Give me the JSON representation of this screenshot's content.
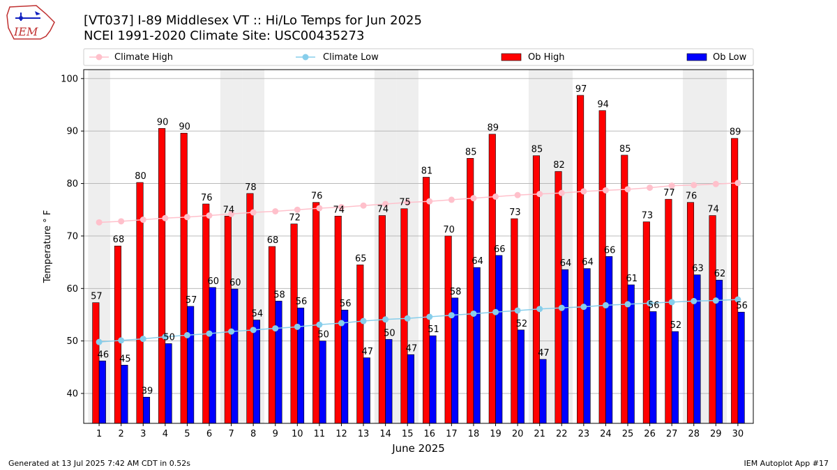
{
  "header": {
    "title_line1": "[VT037] I-89 Middlesex  VT :: Hi/Lo Temps for Jun 2025",
    "title_line2": "NCEI 1991-2020 Climate Site: USC00435273",
    "logo_text": "IEM"
  },
  "footer": {
    "left": "Generated at 13 Jul 2025 7:42 AM CDT in 0.52s",
    "right": "IEM Autoplot App #17"
  },
  "chart_data": {
    "type": "bar",
    "xlabel": "June 2025",
    "ylabel": "Temperature ° F",
    "ylim": [
      34.3,
      101.7
    ],
    "yticks": [
      40,
      50,
      60,
      70,
      80,
      90,
      100
    ],
    "grid": true,
    "legend": "top, horizontal above plot",
    "categories": [
      "1",
      "2",
      "3",
      "4",
      "5",
      "6",
      "7",
      "8",
      "9",
      "10",
      "11",
      "12",
      "13",
      "14",
      "15",
      "16",
      "17",
      "18",
      "19",
      "20",
      "21",
      "22",
      "23",
      "24",
      "25",
      "26",
      "27",
      "28",
      "29",
      "30"
    ],
    "weekend_days": [
      1,
      7,
      8,
      14,
      15,
      21,
      22,
      28,
      29
    ],
    "series": [
      {
        "name": "Climate High",
        "kind": "line",
        "color": "#ffc0cb",
        "values": [
          72.6,
          72.8,
          73.1,
          73.4,
          73.6,
          73.9,
          74.2,
          74.5,
          74.7,
          75.0,
          75.3,
          75.5,
          75.8,
          76.1,
          76.4,
          76.6,
          76.9,
          77.2,
          77.5,
          77.8,
          78.0,
          78.2,
          78.5,
          78.7,
          78.9,
          79.2,
          79.6,
          79.7,
          79.9,
          80.1
        ]
      },
      {
        "name": "Climate Low",
        "kind": "line",
        "color": "#87ceeb",
        "values": [
          49.8,
          50.1,
          50.4,
          50.8,
          51.1,
          51.4,
          51.8,
          52.1,
          52.4,
          52.7,
          53.1,
          53.4,
          53.8,
          54.1,
          54.3,
          54.6,
          54.9,
          55.2,
          55.5,
          55.8,
          56.1,
          56.3,
          56.5,
          56.8,
          57.0,
          57.2,
          57.4,
          57.6,
          57.7,
          57.9
        ]
      },
      {
        "name": "Ob High",
        "kind": "bar",
        "color": "#ff0000",
        "values": [
          57,
          68,
          80,
          90,
          90,
          76,
          74,
          78,
          68,
          72,
          76,
          74,
          65,
          74,
          75,
          81,
          70,
          85,
          89,
          73,
          85,
          82,
          97,
          94,
          85,
          73,
          77,
          76,
          74,
          89
        ],
        "plot_values": [
          57.3,
          68.1,
          80.2,
          90.5,
          89.6,
          76.1,
          73.8,
          78.1,
          68.0,
          72.3,
          76.4,
          73.8,
          64.5,
          73.9,
          75.2,
          81.2,
          70.0,
          84.8,
          89.4,
          73.3,
          85.3,
          82.3,
          96.8,
          93.9,
          85.4,
          72.7,
          77.0,
          76.4,
          73.9,
          88.6
        ]
      },
      {
        "name": "Ob Low",
        "kind": "bar",
        "color": "#0000ff",
        "values": [
          46,
          45,
          39,
          50,
          57,
          60,
          60,
          54,
          58,
          56,
          50,
          56,
          47,
          50,
          47,
          51,
          58,
          64,
          66,
          52,
          47,
          64,
          64,
          66,
          61,
          56,
          52,
          63,
          62,
          56
        ],
        "plot_values": [
          46.2,
          45.4,
          39.3,
          49.5,
          56.6,
          60.2,
          59.9,
          54.0,
          57.6,
          56.3,
          50.0,
          55.9,
          46.8,
          50.3,
          47.4,
          51.0,
          58.2,
          64.0,
          66.3,
          52.1,
          46.5,
          63.6,
          63.8,
          66.1,
          60.7,
          55.6,
          51.8,
          62.6,
          61.6,
          55.5
        ]
      }
    ]
  }
}
